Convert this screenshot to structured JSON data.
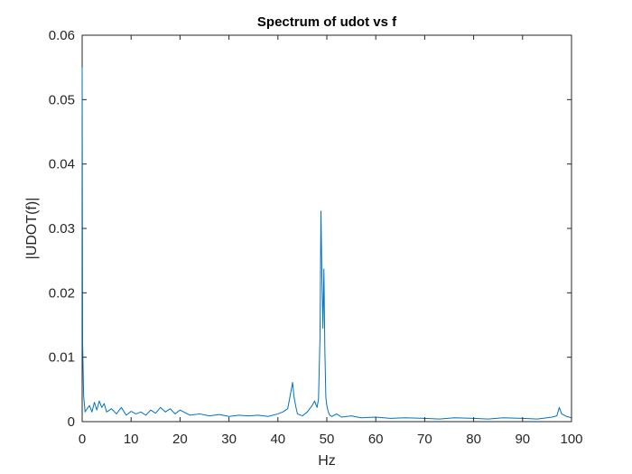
{
  "chart_data": {
    "type": "line",
    "title": "Spectrum of udot vs f",
    "xlabel": "Hz",
    "ylabel": "|UDOT(f)|",
    "xlim": [
      0,
      100
    ],
    "ylim": [
      0,
      0.06
    ],
    "grid": false,
    "x_ticks": [
      "0",
      "10",
      "20",
      "30",
      "40",
      "50",
      "60",
      "70",
      "80",
      "90",
      "100"
    ],
    "y_ticks": [
      "0",
      "0.01",
      "0.02",
      "0.03",
      "0.04",
      "0.05",
      "0.06"
    ],
    "series": [
      {
        "color": "#0072BD",
        "x": [
          0,
          0.1,
          0.3,
          0.6,
          1,
          1.5,
          2,
          2.5,
          3,
          3.5,
          4,
          4.5,
          5,
          6,
          7,
          8,
          9,
          10,
          11,
          12,
          13,
          14,
          15,
          16,
          17,
          18,
          19,
          20,
          22,
          24,
          26,
          28,
          30,
          32,
          34,
          36,
          38,
          40,
          41,
          42,
          42.5,
          43,
          43.3,
          43.7,
          44,
          45,
          46,
          47,
          47.5,
          48,
          48.3,
          48.6,
          48.8,
          49,
          49.2,
          49.4,
          49.6,
          49.8,
          50,
          50.3,
          50.6,
          51,
          52,
          53,
          55,
          57,
          60,
          63,
          66,
          70,
          73,
          76,
          80,
          83,
          86,
          90,
          93,
          95,
          96,
          97,
          97.5,
          98,
          99,
          100
        ],
        "y": [
          0.055,
          0.012,
          0.004,
          0.0015,
          0.002,
          0.0025,
          0.0015,
          0.003,
          0.0018,
          0.0032,
          0.0022,
          0.0028,
          0.0015,
          0.002,
          0.0012,
          0.0022,
          0.001,
          0.0016,
          0.0012,
          0.0015,
          0.001,
          0.0018,
          0.0013,
          0.0022,
          0.0015,
          0.002,
          0.0012,
          0.0018,
          0.001,
          0.0012,
          0.0009,
          0.0011,
          0.0008,
          0.001,
          0.0009,
          0.001,
          0.0008,
          0.0012,
          0.0015,
          0.002,
          0.004,
          0.0061,
          0.0038,
          0.0022,
          0.0012,
          0.0009,
          0.0015,
          0.0025,
          0.0032,
          0.0022,
          0.0035,
          0.013,
          0.0327,
          0.022,
          0.0145,
          0.0237,
          0.011,
          0.0038,
          0.0025,
          0.0015,
          0.001,
          0.0008,
          0.0012,
          0.0007,
          0.0009,
          0.0006,
          0.0007,
          0.0005,
          0.0006,
          0.0005,
          0.0004,
          0.0006,
          0.0005,
          0.0004,
          0.0006,
          0.0005,
          0.0004,
          0.0006,
          0.0007,
          0.0009,
          0.0022,
          0.0012,
          0.0008,
          0.0006
        ]
      }
    ]
  }
}
